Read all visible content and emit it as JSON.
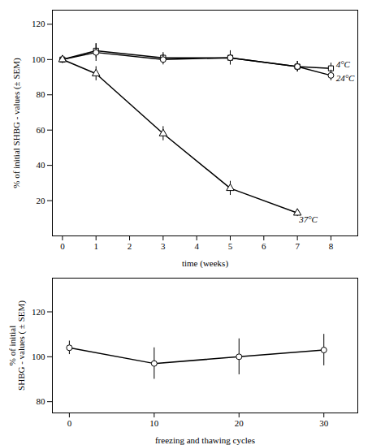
{
  "chart_data": [
    {
      "type": "line",
      "xlabel": "time (weeks)",
      "ylabel": "% of initial SHBG - values (± SEM)",
      "xlim": [
        -0.3,
        8.8
      ],
      "ylim": [
        0,
        128
      ],
      "xticks": [
        0,
        1,
        2,
        3,
        4,
        5,
        6,
        7,
        8
      ],
      "yticks": [
        20,
        40,
        60,
        80,
        100,
        120
      ],
      "series": [
        {
          "x": [
            0,
            1,
            3,
            5,
            7,
            8
          ],
          "values": [
            100,
            105,
            101,
            101,
            96,
            95
          ],
          "yerr": [
            2,
            4,
            3,
            4,
            3,
            3
          ],
          "color": "black",
          "marker": "square",
          "line_style": "solid"
        },
        {
          "x": [
            0,
            1,
            3,
            5,
            7,
            8
          ],
          "values": [
            100,
            104,
            100,
            101,
            96,
            91
          ],
          "yerr": [
            2,
            5,
            3,
            4,
            3,
            3
          ],
          "color": "black",
          "marker": "circle",
          "line_style": "solid"
        },
        {
          "x": [
            0,
            1,
            3,
            5,
            7
          ],
          "values": [
            100,
            92,
            58,
            27,
            13
          ],
          "yerr": [
            2,
            4,
            4,
            4,
            2
          ],
          "color": "black",
          "marker": "triangle",
          "line_style": "solid"
        }
      ],
      "annotations": [
        {
          "text": "4°C",
          "x": 8.15,
          "y": 97
        },
        {
          "text": "24°C",
          "x": 8.15,
          "y": 89.5
        },
        {
          "text": "37°C",
          "x": 7.05,
          "y": 9
        }
      ]
    },
    {
      "type": "line",
      "xlabel": "freezing and thawing cycles",
      "ylabel": "% of initial\nSHBG - values ( ± SEM)",
      "xlim": [
        -2,
        34
      ],
      "ylim": [
        75,
        135
      ],
      "xticks": [
        0,
        10,
        20,
        30
      ],
      "yticks": [
        80,
        100,
        120
      ],
      "series": [
        {
          "x": [
            0,
            10,
            20,
            30
          ],
          "values": [
            104,
            97,
            100,
            103
          ],
          "yerr": [
            3,
            7,
            8,
            7
          ],
          "color": "black",
          "marker": "circle",
          "line_style": "solid"
        }
      ]
    }
  ]
}
